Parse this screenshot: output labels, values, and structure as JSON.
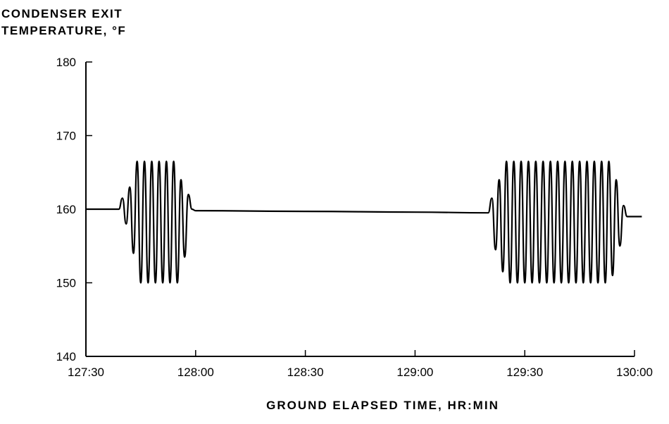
{
  "chart_data": {
    "type": "line",
    "title": "",
    "ylabel_lines": [
      "CONDENSER EXIT",
      "TEMPERATURE, °F"
    ],
    "xlabel": "GROUND ELAPSED TIME, HR:MIN",
    "x_unit": "hr:min",
    "xlim": [
      "127:30",
      "130:00"
    ],
    "ylim": [
      140,
      180
    ],
    "x_ticks": [
      "127:30",
      "128:00",
      "128:30",
      "129:00",
      "129:30",
      "130:00"
    ],
    "y_ticks": [
      140,
      150,
      160,
      170,
      180
    ],
    "grid": false,
    "series": [
      {
        "name": "",
        "x": [
          "127:30",
          "127:39",
          "127:40",
          "127:41",
          "127:42",
          "127:43",
          "127:44",
          "127:45",
          "127:46",
          "127:47",
          "127:48",
          "127:49",
          "127:50",
          "127:51",
          "127:52",
          "127:53",
          "127:54",
          "127:55",
          "127:56",
          "127:57",
          "127:58",
          "127:59",
          "128:00",
          "128:30",
          "129:00",
          "129:20",
          "129:21",
          "129:22",
          "129:23",
          "129:24",
          "129:25",
          "129:26",
          "129:27",
          "129:28",
          "129:29",
          "129:30",
          "129:31",
          "129:32",
          "129:33",
          "129:34",
          "129:35",
          "129:36",
          "129:37",
          "129:38",
          "129:39",
          "129:40",
          "129:41",
          "129:42",
          "129:43",
          "129:44",
          "129:45",
          "129:46",
          "129:47",
          "129:48",
          "129:49",
          "129:50",
          "129:51",
          "129:52",
          "129:53",
          "129:54",
          "129:55",
          "129:56",
          "129:57",
          "129:58",
          "129:59",
          "130:00",
          "130:02"
        ],
        "y": [
          160.0,
          160.0,
          161.5,
          158.0,
          163.0,
          154.0,
          166.5,
          150.0,
          166.5,
          150.0,
          166.5,
          150.0,
          166.5,
          150.0,
          166.5,
          150.0,
          166.5,
          150.0,
          164.0,
          153.5,
          162.0,
          160.0,
          159.8,
          159.7,
          159.6,
          159.5,
          161.5,
          154.5,
          164.0,
          151.5,
          166.5,
          150.0,
          166.5,
          150.0,
          166.5,
          150.0,
          166.5,
          150.0,
          166.5,
          150.0,
          166.5,
          150.0,
          166.5,
          150.0,
          166.5,
          150.0,
          166.5,
          150.0,
          166.5,
          150.0,
          166.5,
          150.0,
          166.5,
          150.0,
          166.5,
          150.0,
          166.5,
          150.0,
          166.5,
          151.0,
          164.0,
          155.0,
          160.5,
          159.0,
          159.0,
          159.0,
          159.0
        ]
      }
    ]
  }
}
